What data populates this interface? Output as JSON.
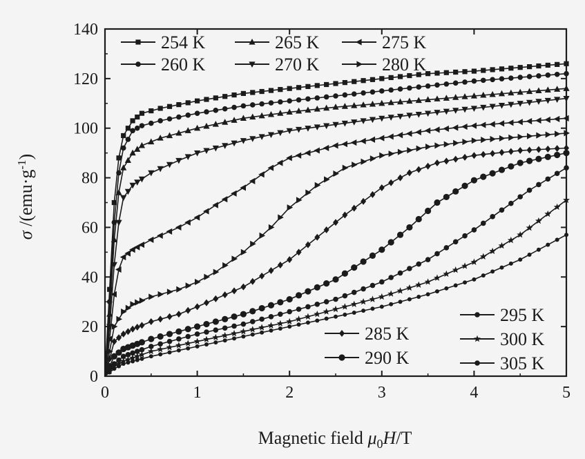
{
  "chart_data": {
    "type": "scatter",
    "xlabel_parts": {
      "main": "Magnetic field  ",
      "mu": "μ",
      "sub": "0",
      "var": "H",
      "unit": "/T"
    },
    "ylabel_parts": {
      "sym": "σ",
      "unit": " /(emu·g",
      "sup": "-1",
      "close": ")"
    },
    "xlim": [
      0,
      5
    ],
    "ylim": [
      0,
      140
    ],
    "xticks": [
      "0",
      "1",
      "2",
      "3",
      "4",
      "5"
    ],
    "yticks": [
      "0",
      "20",
      "40",
      "60",
      "80",
      "100",
      "120",
      "140"
    ],
    "grid": false,
    "series": [
      {
        "name": "254 K",
        "marker": "square",
        "x": [
          0,
          0.05,
          0.1,
          0.15,
          0.2,
          0.3,
          0.4,
          0.6,
          1,
          1.5,
          2,
          2.5,
          3,
          3.5,
          4,
          4.5,
          5
        ],
        "y": [
          0,
          35,
          70,
          88,
          97,
          103,
          106,
          108,
          111,
          114,
          116,
          118,
          120,
          122,
          123,
          124.5,
          126
        ]
      },
      {
        "name": "260 K",
        "marker": "circle",
        "x": [
          0,
          0.05,
          0.1,
          0.15,
          0.2,
          0.3,
          0.4,
          0.6,
          1,
          1.5,
          2,
          2.5,
          3,
          3.5,
          4,
          4.5,
          5
        ],
        "y": [
          0,
          30,
          62,
          82,
          92,
          99,
          101,
          103,
          106,
          109,
          111,
          113,
          115,
          117,
          119,
          120.5,
          122
        ]
      },
      {
        "name": "265 K",
        "marker": "triangle-up",
        "x": [
          0,
          0.05,
          0.1,
          0.15,
          0.2,
          0.3,
          0.4,
          0.6,
          1,
          1.5,
          2,
          2.5,
          3,
          3.5,
          4,
          4.5,
          5
        ],
        "y": [
          0,
          25,
          55,
          74,
          84,
          90,
          93,
          96,
          100,
          104,
          106.5,
          108.5,
          110,
          111.5,
          113,
          114.5,
          116
        ]
      },
      {
        "name": "270 K",
        "marker": "triangle-down",
        "x": [
          0,
          0.05,
          0.1,
          0.15,
          0.2,
          0.3,
          0.5,
          0.8,
          1,
          1.5,
          2,
          2.5,
          3,
          3.5,
          4,
          4.5,
          5
        ],
        "y": [
          0,
          20,
          45,
          62,
          72,
          77,
          82,
          87,
          90,
          95,
          99,
          101.5,
          104,
          106,
          108,
          110,
          112
        ]
      },
      {
        "name": "275 K",
        "marker": "triangle-left",
        "x": [
          0,
          0.05,
          0.1,
          0.15,
          0.2,
          0.3,
          0.5,
          0.8,
          1,
          1.2,
          1.5,
          1.8,
          2,
          2.5,
          3,
          3.5,
          4,
          4.5,
          5
        ],
        "y": [
          0,
          15,
          33,
          43,
          48,
          51,
          55,
          60,
          64,
          69,
          76,
          84,
          88,
          93,
          96,
          99,
          101,
          102.5,
          104
        ]
      },
      {
        "name": "280 K",
        "marker": "triangle-right",
        "x": [
          0,
          0.05,
          0.1,
          0.2,
          0.3,
          0.5,
          0.8,
          1,
          1.2,
          1.5,
          1.8,
          2,
          2.3,
          2.6,
          3,
          3.5,
          4,
          4.5,
          5
        ],
        "y": [
          0,
          10,
          20,
          26,
          29,
          32,
          35,
          38,
          42,
          50,
          60,
          68,
          77,
          84,
          89,
          92.5,
          95,
          96.5,
          98
        ]
      },
      {
        "name": "285 K",
        "marker": "diamond",
        "x": [
          0,
          0.05,
          0.1,
          0.2,
          0.3,
          0.5,
          0.8,
          1,
          1.5,
          2,
          2.3,
          2.6,
          3,
          3.3,
          3.6,
          4,
          4.5,
          5
        ],
        "y": [
          0,
          7,
          14,
          17,
          19,
          22,
          25,
          28,
          36,
          47,
          56,
          65,
          76,
          82,
          86,
          89,
          91,
          92
        ]
      },
      {
        "name": "290 K",
        "marker": "circle-large",
        "x": [
          0,
          0.05,
          0.1,
          0.2,
          0.5,
          1,
          1.5,
          2,
          2.5,
          3,
          3.3,
          3.6,
          4,
          4.5,
          5
        ],
        "y": [
          0,
          4,
          8,
          11,
          15,
          20,
          25,
          31,
          39,
          51,
          60,
          70,
          79,
          86,
          90
        ]
      },
      {
        "name": "295 K",
        "marker": "circle",
        "x": [
          0,
          0.05,
          0.1,
          0.2,
          0.5,
          1,
          1.5,
          2,
          2.5,
          3,
          3.5,
          4,
          4.3,
          4.6,
          5
        ],
        "y": [
          0,
          3,
          5,
          8,
          12,
          17,
          21,
          26,
          31,
          38,
          47,
          59,
          67,
          75,
          84
        ]
      },
      {
        "name": "300 K",
        "marker": "star",
        "x": [
          0,
          0.05,
          0.1,
          0.2,
          0.5,
          1,
          1.5,
          2,
          2.5,
          3,
          3.5,
          4,
          4.5,
          5
        ],
        "y": [
          0,
          2,
          4,
          6,
          10,
          14,
          18,
          22,
          27,
          32,
          38,
          46,
          57,
          71
        ]
      },
      {
        "name": "305 K",
        "marker": "circle-small",
        "x": [
          0,
          0.05,
          0.1,
          0.2,
          0.5,
          1,
          1.5,
          2,
          2.5,
          3,
          3.5,
          4,
          4.5,
          5
        ],
        "y": [
          0,
          1.5,
          3,
          5,
          8,
          12,
          16,
          20,
          24,
          28,
          33,
          39,
          47,
          57
        ]
      }
    ],
    "legend_groups": [
      {
        "position": "top-left",
        "rows": [
          [
            "254 K",
            "265 K",
            "275 K"
          ],
          [
            "260 K",
            "270 K",
            "280 K"
          ]
        ]
      },
      {
        "position": "bottom-center",
        "rows": [
          [
            "285 K"
          ],
          [
            "290 K"
          ]
        ]
      },
      {
        "position": "bottom-right",
        "rows": [
          [
            "295 K"
          ],
          [
            "300 K"
          ],
          [
            "305 K"
          ]
        ]
      }
    ]
  }
}
